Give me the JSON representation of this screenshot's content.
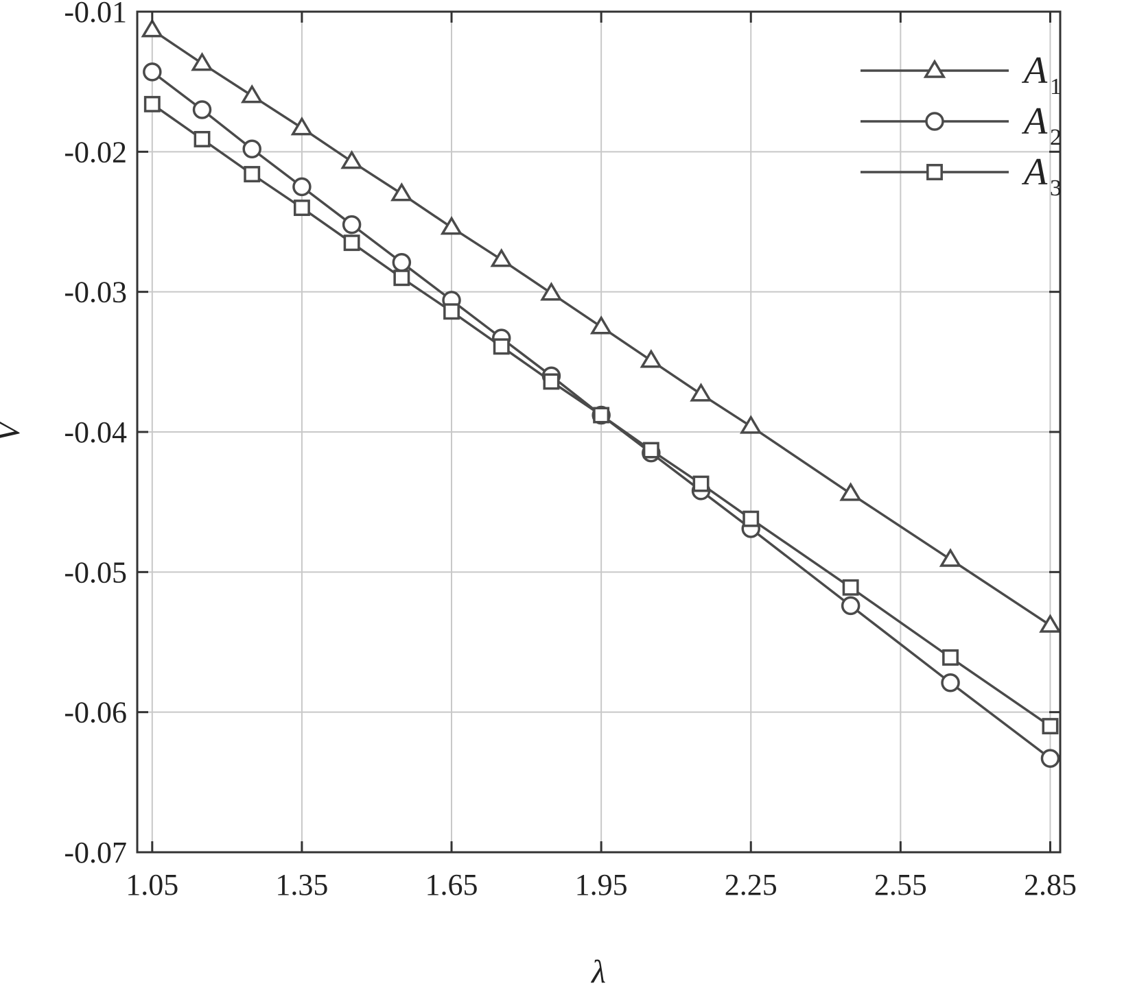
{
  "chart_data": {
    "type": "line",
    "title": "",
    "xlabel": "λ",
    "ylabel": "V",
    "xlim": [
      1.02,
      2.87
    ],
    "ylim": [
      -0.07,
      -0.01
    ],
    "xticks": [
      1.05,
      1.35,
      1.65,
      1.95,
      2.25,
      2.55,
      2.85
    ],
    "xtick_labels": [
      "1.05",
      "1.35",
      "1.65",
      "1.95",
      "2.25",
      "2.55",
      "2.85"
    ],
    "yticks": [
      -0.01,
      -0.02,
      -0.03,
      -0.04,
      -0.05,
      -0.06,
      -0.07
    ],
    "ytick_labels": [
      "-0.01",
      "-0.02",
      "-0.03",
      "-0.04",
      "-0.05",
      "-0.06",
      "-0.07"
    ],
    "grid": true,
    "legend_position": "top-right",
    "line_color": "#4a4a4a",
    "series": [
      {
        "name": "A",
        "subscript": "1",
        "marker": "triangle",
        "x": [
          1.05,
          1.15,
          1.25,
          1.35,
          1.45,
          1.55,
          1.65,
          1.75,
          1.85,
          1.95,
          2.05,
          2.15,
          2.25,
          2.45,
          2.65,
          2.85
        ],
        "y": [
          -0.0113,
          -0.0137,
          -0.016,
          -0.0183,
          -0.0207,
          -0.023,
          -0.0254,
          -0.0277,
          -0.0301,
          -0.0325,
          -0.0349,
          -0.0373,
          -0.0396,
          -0.0444,
          -0.0491,
          -0.0538
        ]
      },
      {
        "name": "A",
        "subscript": "2",
        "marker": "circle",
        "x": [
          1.05,
          1.15,
          1.25,
          1.35,
          1.45,
          1.55,
          1.65,
          1.75,
          1.85,
          1.95,
          2.05,
          2.15,
          2.25,
          2.45,
          2.65,
          2.85
        ],
        "y": [
          -0.0143,
          -0.017,
          -0.0198,
          -0.0225,
          -0.0252,
          -0.0279,
          -0.0306,
          -0.0333,
          -0.036,
          -0.0388,
          -0.0415,
          -0.0442,
          -0.0469,
          -0.0524,
          -0.0579,
          -0.0633
        ]
      },
      {
        "name": "A",
        "subscript": "3",
        "marker": "square",
        "x": [
          1.05,
          1.15,
          1.25,
          1.35,
          1.45,
          1.55,
          1.65,
          1.75,
          1.85,
          1.95,
          2.05,
          2.15,
          2.25,
          2.45,
          2.65,
          2.85
        ],
        "y": [
          -0.0166,
          -0.0191,
          -0.0216,
          -0.024,
          -0.0265,
          -0.029,
          -0.0314,
          -0.0339,
          -0.0364,
          -0.0388,
          -0.0413,
          -0.0437,
          -0.0462,
          -0.0511,
          -0.0561,
          -0.061
        ]
      }
    ]
  }
}
